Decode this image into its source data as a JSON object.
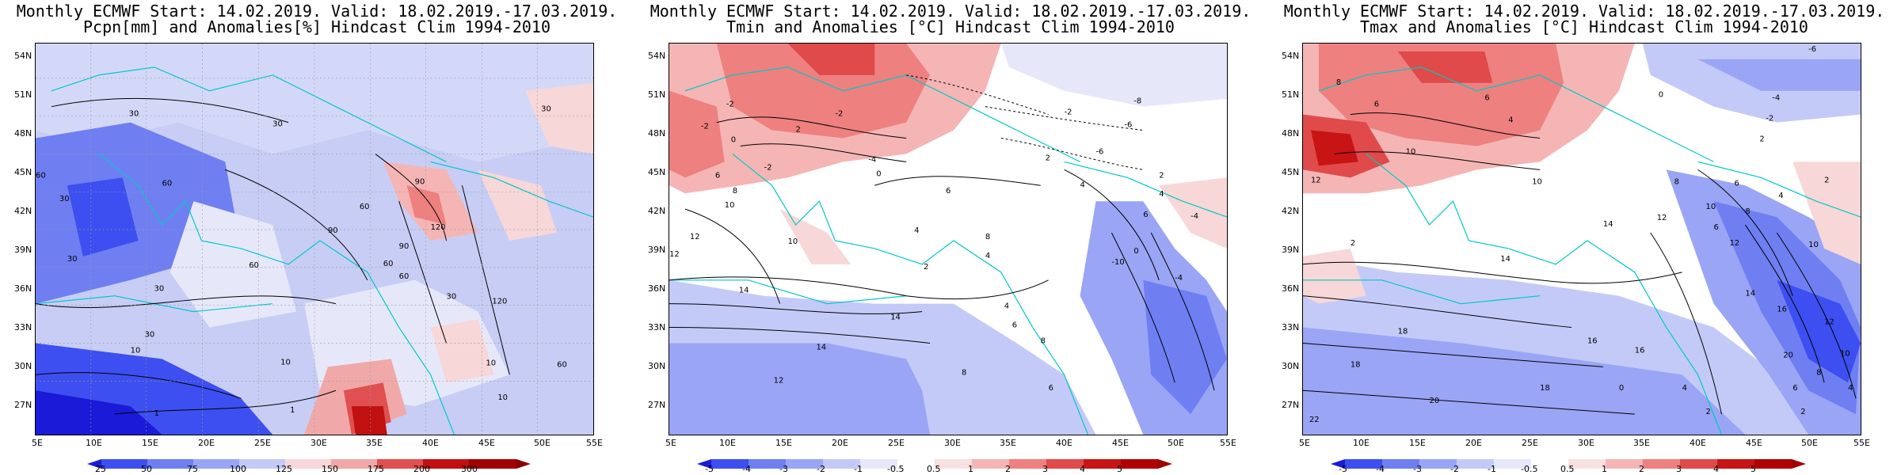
{
  "panels": [
    {
      "title_line1": "Monthly ECMWF Start: 14.02.2019. Valid: 18.02.2019.-17.03.2019.",
      "title_line2": "Pcpn[mm] and Anomalies[%] Hindcast Clim 1994-2010",
      "colorbar_labels": [
        "25",
        "50",
        "75",
        "100",
        "125",
        "150",
        "175",
        "200",
        "300"
      ],
      "colorbar_colors": [
        "#1a1ad8",
        "#3d4ff0",
        "#7f8ff5",
        "#b8c0f5",
        "#e6e8fa",
        "#f7d7d7",
        "#f0a8a8",
        "#e05050",
        "#c01010",
        "#8b0000"
      ],
      "contour_labels": [
        "30",
        "30",
        "60",
        "30",
        "30",
        "60",
        "30",
        "90",
        "90",
        "60",
        "120",
        "60",
        "90",
        "60",
        "30",
        "60",
        "120",
        "30",
        "10",
        "30",
        "10",
        "10",
        "10",
        "60",
        "1",
        "1"
      ]
    },
    {
      "title_line1": "Monthly ECMWF Start: 14.02.2019. Valid: 18.02.2019.-17.03.2019.",
      "title_line2": "Tmin and Anomalies [°C] Hindcast Clim 1994-2010",
      "colorbar_labels": [
        "-5",
        "-4",
        "-3",
        "-2",
        "-1",
        "-0.5",
        "0.5",
        "1",
        "2",
        "3",
        "4",
        "5"
      ],
      "colorbar_colors": [
        "#1a1ad8",
        "#3d4ff0",
        "#6f7ff2",
        "#9aa5f5",
        "#c4caf8",
        "#e6e8fa",
        "#ffffff",
        "#fae0e0",
        "#f5b5b5",
        "#ee8080",
        "#e04a4a",
        "#c81414",
        "#a00000"
      ],
      "contour_labels": [
        "-2",
        "-2",
        "0",
        "-2",
        "2",
        "-2",
        "0",
        "-4",
        "-8",
        "-6",
        "-6",
        "-2",
        "2",
        "4",
        "6",
        "4",
        "6",
        "8",
        "10",
        "12",
        "14",
        "14",
        "12",
        "10",
        "8",
        "6",
        "4",
        "2",
        "4",
        "6",
        "8",
        "14",
        "12",
        "8",
        "6",
        "4",
        "-10",
        "-4",
        "-4",
        "0",
        "2"
      ]
    },
    {
      "title_line1": "Monthly ECMWF Start: 14.02.2019. Valid: 18.02.2019.-17.03.2019.",
      "title_line2": "Tmax and Anomalies [°C] Hindcast Clim 1994-2010",
      "colorbar_labels": [
        "-5",
        "-4",
        "-3",
        "-2",
        "-1",
        "-0.5",
        "0.5",
        "1",
        "2",
        "3",
        "4",
        "5"
      ],
      "colorbar_colors": [
        "#1a1ad8",
        "#3d4ff0",
        "#6f7ff2",
        "#9aa5f5",
        "#c4caf8",
        "#e6e8fa",
        "#ffffff",
        "#fae0e0",
        "#f5b5b5",
        "#ee8080",
        "#e04a4a",
        "#c81414",
        "#a00000"
      ],
      "contour_labels": [
        "-6",
        "8",
        "6",
        "6",
        "4",
        "-4",
        "-2",
        "2",
        "0",
        "10",
        "12",
        "10",
        "8",
        "6",
        "4",
        "2",
        "2",
        "10",
        "12",
        "14",
        "16",
        "18",
        "16",
        "14",
        "12",
        "10",
        "8",
        "6",
        "4",
        "2",
        "20",
        "22",
        "20",
        "18",
        "16",
        "14",
        "12",
        "10",
        "8",
        "6",
        "4",
        "2",
        "0",
        "18"
      ]
    }
  ],
  "axes": {
    "lat_ticks": [
      "54N",
      "51N",
      "48N",
      "45N",
      "42N",
      "39N",
      "36N",
      "33N",
      "30N",
      "27N"
    ],
    "lon_ticks": [
      "5E",
      "10E",
      "15E",
      "20E",
      "25E",
      "30E",
      "35E",
      "40E",
      "45E",
      "50E",
      "55E"
    ]
  }
}
